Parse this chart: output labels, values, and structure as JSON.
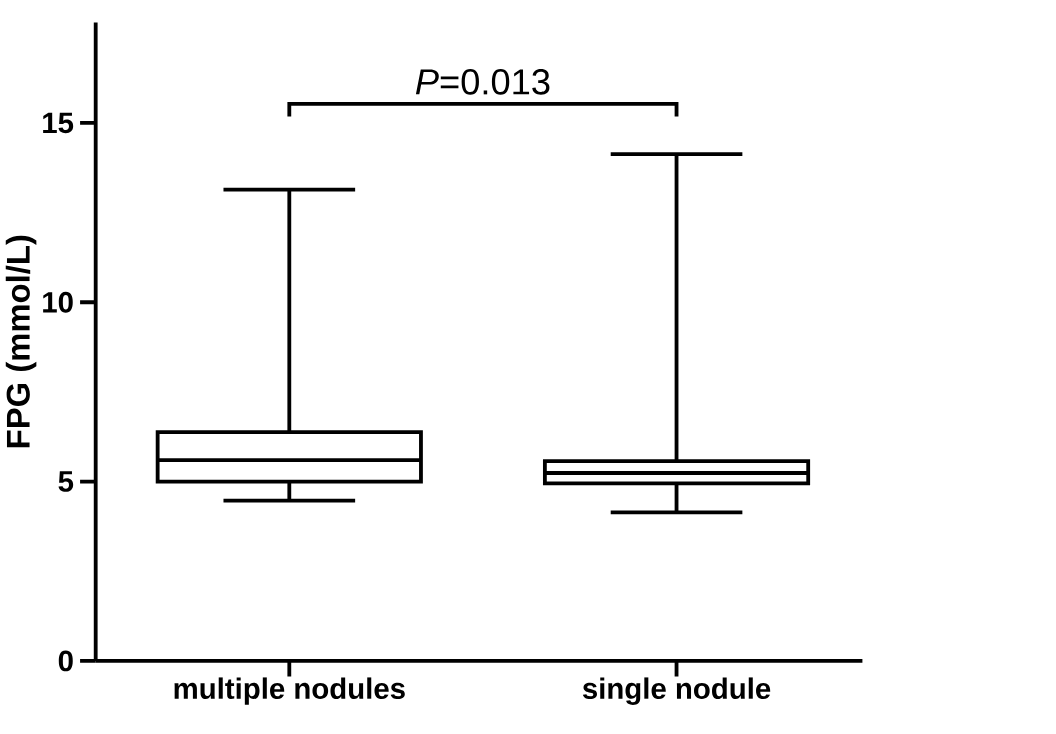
{
  "chart_data": {
    "type": "box",
    "ylabel": "FPG (mmol/L)",
    "categories": [
      "multiple nodules",
      "single nodule"
    ],
    "boxes": [
      {
        "low": 4.47,
        "q1": 5.0,
        "median": 5.6,
        "q3": 6.38,
        "high": 13.14
      },
      {
        "low": 4.14,
        "q1": 4.95,
        "median": 5.24,
        "q3": 5.57,
        "high": 14.13
      }
    ],
    "color": "#000000",
    "ylim": [
      0,
      17.8
    ],
    "yticks": [
      0,
      5,
      10,
      15
    ],
    "annotations": [
      "*P*=0.013"
    ]
  }
}
